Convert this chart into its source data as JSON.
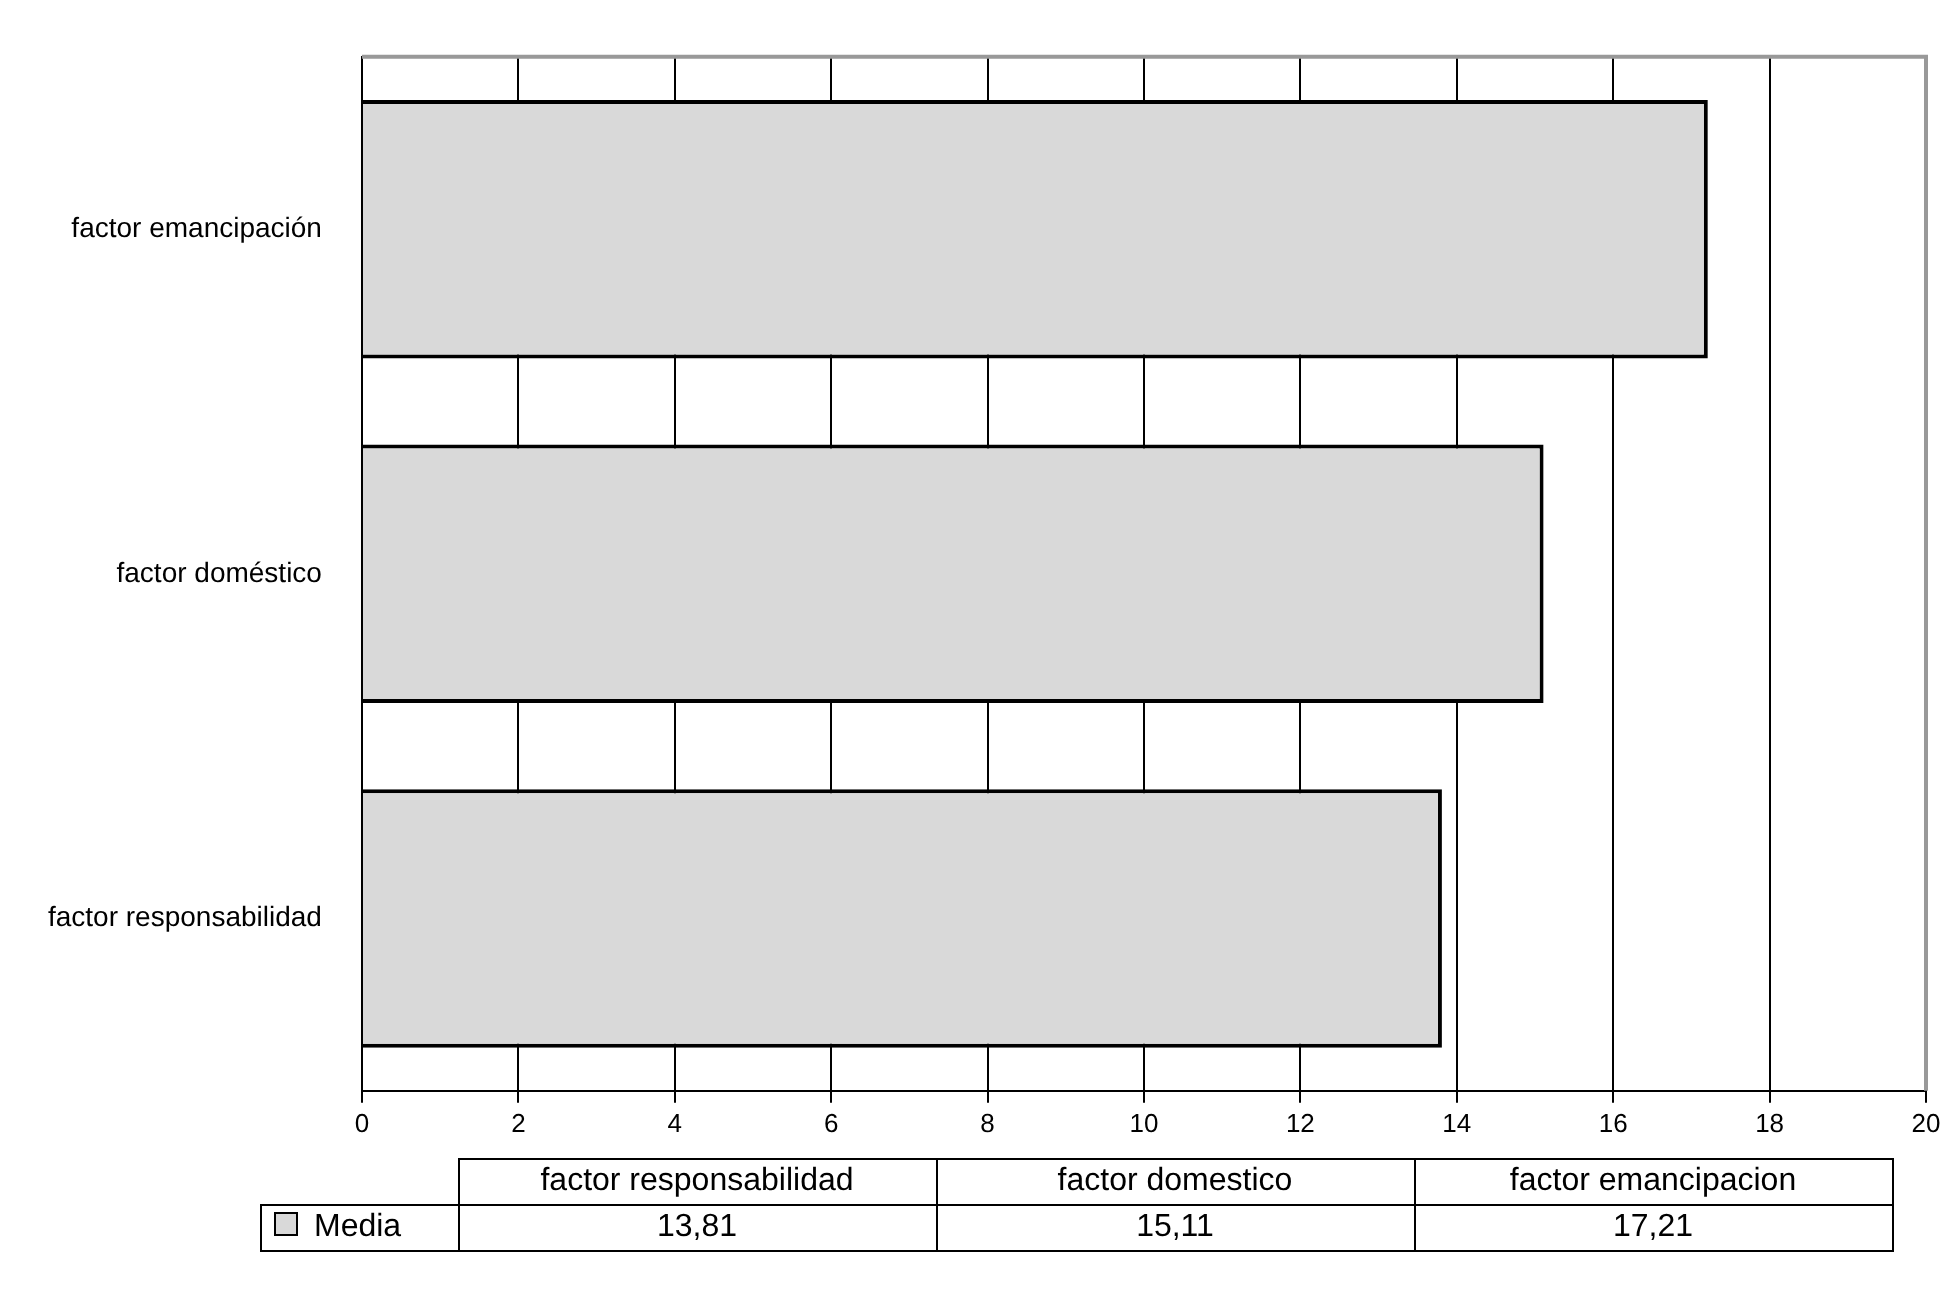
{
  "chart_data": {
    "type": "bar",
    "orientation": "horizontal",
    "categories": [
      "factor emancipación",
      "factor doméstico",
      "factor responsabilidad"
    ],
    "series": [
      {
        "name": "Media",
        "color": "#d9d9d9",
        "values": [
          17.21,
          15.11,
          13.81
        ]
      }
    ],
    "xlim": [
      0,
      20
    ],
    "xticks": [
      0,
      2,
      4,
      6,
      8,
      10,
      12,
      14,
      16,
      18,
      20
    ],
    "grid": "x",
    "legend": "bottom",
    "annotations": [
      "factor responsabilidad",
      "factor domestico",
      "factor emancipacion",
      "13,81",
      "15,11",
      "17,21"
    ]
  }
}
